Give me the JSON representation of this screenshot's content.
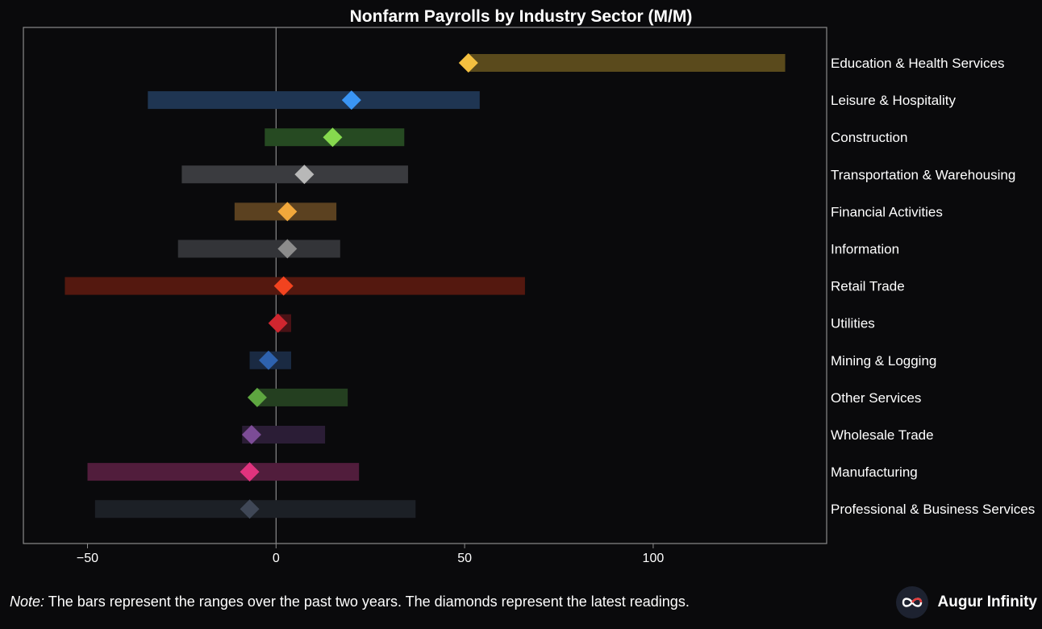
{
  "chart_data": {
    "type": "range-dot",
    "title": "Nonfarm Payrolls by Industry Sector (M/M)",
    "xlim": [
      -67,
      146
    ],
    "xticks": [
      -50,
      0,
      50,
      100
    ],
    "xtick_labels": [
      "−50",
      "0",
      "50",
      "100"
    ],
    "categories": [
      "Education & Health Services",
      "Leisure & Hospitality",
      "Construction",
      "Transportation & Warehousing",
      "Financial Activities",
      "Information",
      "Retail Trade",
      "Utilities",
      "Mining & Logging",
      "Other Services",
      "Wholesale Trade",
      "Manufacturing",
      "Professional & Business Services"
    ],
    "range_low": [
      51,
      -34,
      -3,
      -25,
      -11,
      -26,
      -56,
      0,
      -7,
      -5,
      -9,
      -50,
      -48
    ],
    "range_high": [
      135,
      54,
      34,
      35,
      16,
      17,
      66,
      4,
      4,
      19,
      13,
      22,
      37
    ],
    "latest": [
      51,
      20,
      15,
      7.5,
      3,
      3,
      2,
      0.5,
      -2,
      -5,
      -6.5,
      -7,
      -7
    ],
    "bar_colors": [
      "#5a4a1c",
      "#1f3552",
      "#264a22",
      "#3a3b3f",
      "#5b4120",
      "#333438",
      "#54180f",
      "#4a1216",
      "#1a2a42",
      "#243f20",
      "#2b1d36",
      "#511d3c",
      "#1c2026"
    ],
    "marker_colors": [
      "#f4c040",
      "#3a95f4",
      "#86d94e",
      "#b8b8b8",
      "#f2a83b",
      "#8c8c8c",
      "#f2431f",
      "#d0262f",
      "#2e62ae",
      "#5ea640",
      "#7c4c96",
      "#e0337e",
      "#3f4756"
    ]
  },
  "footer": {
    "note_prefix": "Note:",
    "note_text": " The bars represent the ranges over the past two years. The diamonds represent the latest readings.",
    "brand_name": "Augur Infinity",
    "brand_icon": "infinity-logo-icon",
    "brand_accent": "#e43a3a"
  }
}
